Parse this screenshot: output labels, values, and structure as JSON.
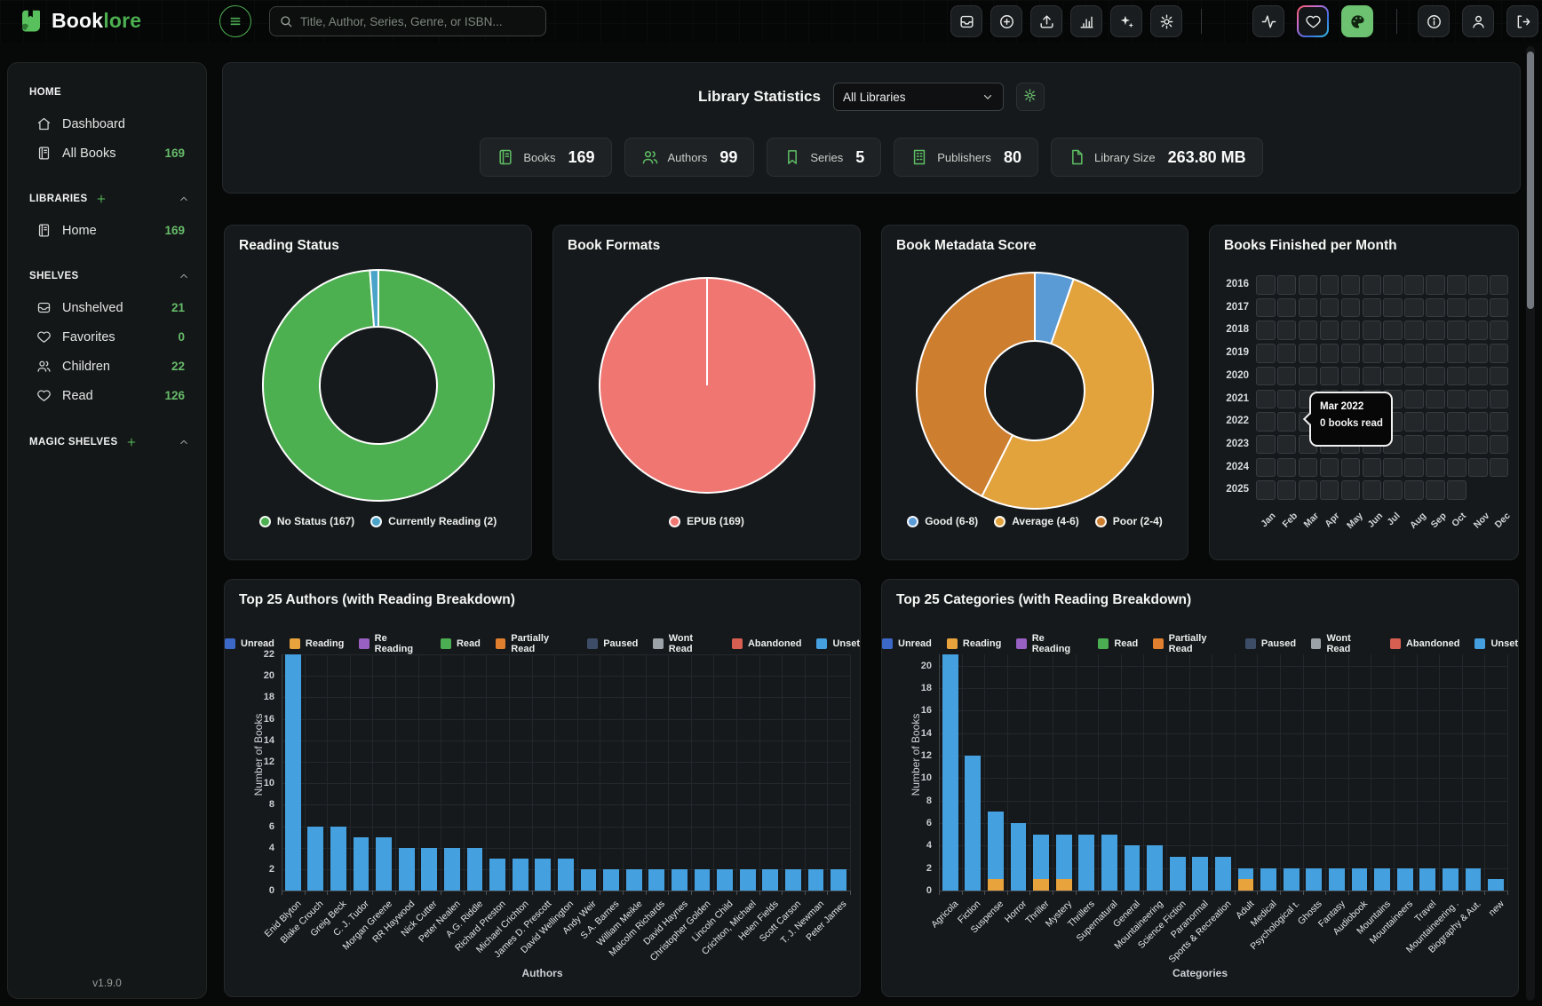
{
  "navbar": {
    "brand": {
      "name_primary": "Book",
      "name_accent": "lore"
    },
    "search_placeholder": "Title, Author, Series, Genre, or ISBN...",
    "button_groups": [
      [
        "tray",
        "plus-circle",
        "upload",
        "bar-chart",
        "sparkles",
        "gear"
      ],
      [
        "activity",
        "heart",
        "palette"
      ],
      [
        "info",
        "user",
        "logout"
      ]
    ],
    "active_button": "palette"
  },
  "sidebar": {
    "sections": [
      {
        "label": "HOME",
        "addable": false,
        "collapsible": false,
        "items": [
          {
            "icon": "home-icon",
            "label": "Dashboard",
            "count": ""
          },
          {
            "icon": "book-icon",
            "label": "All Books",
            "count": "169"
          }
        ]
      },
      {
        "label": "LIBRARIES",
        "addable": true,
        "collapsible": true,
        "items": [
          {
            "icon": "book-icon",
            "label": "Home",
            "count": "169"
          }
        ]
      },
      {
        "label": "SHELVES",
        "addable": false,
        "collapsible": true,
        "items": [
          {
            "icon": "inbox-icon",
            "label": "Unshelved",
            "count": "21"
          },
          {
            "icon": "heart-icon",
            "label": "Favorites",
            "count": "0"
          },
          {
            "icon": "users-icon",
            "label": "Children",
            "count": "22"
          },
          {
            "icon": "heart-icon",
            "label": "Read",
            "count": "126"
          }
        ]
      },
      {
        "label": "MAGIC SHELVES",
        "addable": true,
        "collapsible": true,
        "items": []
      }
    ],
    "version": "v1.9.0"
  },
  "stats": {
    "title": "Library Statistics",
    "library_filter": "All Libraries",
    "chips": [
      {
        "icon": "book-icon",
        "label": "Books",
        "value": "169"
      },
      {
        "icon": "users-icon",
        "label": "Authors",
        "value": "99"
      },
      {
        "icon": "bookmark-icon",
        "label": "Series",
        "value": "5"
      },
      {
        "icon": "building-icon",
        "label": "Publishers",
        "value": "80"
      },
      {
        "icon": "file-icon",
        "label": "Library Size",
        "value": "263.80 MB"
      }
    ]
  },
  "status_legend": [
    {
      "label": "Unread",
      "color": "#3c68c8"
    },
    {
      "label": "Reading",
      "color": "#e8a33d"
    },
    {
      "label": "Re Reading",
      "color": "#9760c2"
    },
    {
      "label": "Read",
      "color": "#4cae52"
    },
    {
      "label": "Partially Read",
      "color": "#e07f2e"
    },
    {
      "label": "Paused",
      "color": "#3d4d68"
    },
    {
      "label": "Wont Read",
      "color": "#9ba3a8"
    },
    {
      "label": "Abandoned",
      "color": "#d75f52"
    },
    {
      "label": "Unset",
      "color": "#45a0e0"
    }
  ],
  "chart_data": [
    {
      "id": "reading_status",
      "type": "pie",
      "variant": "donut",
      "title": "Reading Status",
      "labels": [
        "No Status (167)",
        "Currently Reading (2)"
      ],
      "values": [
        167,
        2
      ],
      "colors": [
        "#4caf50",
        "#4aa3c9"
      ],
      "legend_position": "bottom",
      "hole_ratio": 0.5
    },
    {
      "id": "book_formats",
      "type": "pie",
      "variant": "pie",
      "title": "Book Formats",
      "labels": [
        "EPUB (169)"
      ],
      "values": [
        169
      ],
      "colors": [
        "#f07672"
      ],
      "legend_position": "bottom",
      "hole_ratio": 0
    },
    {
      "id": "book_metadata_score",
      "type": "pie",
      "variant": "donut",
      "title": "Book Metadata Score",
      "labels": [
        "Good (6-8)",
        "Average (4-6)",
        "Poor (2-4)"
      ],
      "values": [
        9,
        88,
        72
      ],
      "values_note": "estimated from arc angles; no numeric labels shown in chart",
      "colors": [
        "#5b9bd5",
        "#e2a23c",
        "#cd7e2e"
      ],
      "legend_position": "bottom",
      "hole_ratio": 0.42
    },
    {
      "id": "books_finished_per_month",
      "type": "heatmap",
      "title": "Books Finished per Month",
      "rows": [
        "2016",
        "2017",
        "2018",
        "2019",
        "2020",
        "2021",
        "2022",
        "2023",
        "2024",
        "2025"
      ],
      "columns": [
        "Jan",
        "Feb",
        "Mar",
        "Apr",
        "May",
        "Jun",
        "Jul",
        "Aug",
        "Sep",
        "Oct",
        "Nov",
        "Dec"
      ],
      "last_row_cell_count": 10,
      "all_values_zero": true,
      "tooltip": {
        "title": "Mar 2022",
        "text": "0 books read"
      }
    },
    {
      "id": "top_authors",
      "type": "bar",
      "stacked": true,
      "title": "Top 25 Authors (with Reading Breakdown)",
      "xlabel": "Authors",
      "ylabel": "Number of Books",
      "ylim": [
        0,
        22
      ],
      "ytick_step": 2,
      "ytick_max": 22,
      "grid": true,
      "legend_position": "top",
      "categories": [
        "Enid Blyton",
        "Blake Crouch",
        "Greig Beck",
        "C. J. Tudor",
        "Morgan Greene",
        "RR Haywood",
        "Nick Cutter",
        "Peter Nealen",
        "A.G. Riddle",
        "Richard Preston",
        "Michael Crichton",
        "James D. Prescott",
        "David Wellington",
        "Andy Weir",
        "S.A. Barnes",
        "William Meikle",
        "Malcolm Richards",
        "David Haynes",
        "Christopher Golden",
        "Lincoln Child",
        "Crichton, Michael",
        "Helen Fields",
        "Scott Carson",
        "T. J. Newman",
        "Peter James"
      ],
      "series": [
        {
          "name": "Unset",
          "color": "#45a0e0",
          "values": [
            22,
            6,
            6,
            5,
            5,
            4,
            4,
            4,
            4,
            3,
            3,
            3,
            3,
            2,
            2,
            2,
            2,
            2,
            2,
            2,
            2,
            2,
            2,
            2,
            2
          ]
        }
      ]
    },
    {
      "id": "top_categories",
      "type": "bar",
      "stacked": true,
      "title": "Top 25 Categories (with Reading Breakdown)",
      "xlabel": "Categories",
      "ylabel": "Number of Books",
      "ylim": [
        0,
        21
      ],
      "ytick_step": 2,
      "ytick_max": 20,
      "grid": true,
      "legend_position": "top",
      "categories": [
        "Agricola",
        "Fiction",
        "Suspense",
        "Horror",
        "Thriller",
        "Mystery",
        "Thrillers",
        "Supernatural",
        "General",
        "Mountaineering",
        "Science Fiction",
        "Paranormal",
        "Sports & Recreation",
        "Adult",
        "Medical",
        "Psychological t.",
        "Ghosts",
        "Fantasy",
        "Audiobook",
        "Mountains",
        "Mountaineers",
        "Travel",
        "Mountaineering .",
        "Biography & Aut.",
        "new"
      ],
      "series": [
        {
          "name": "Reading",
          "color": "#e8a33d",
          "values": [
            0,
            0,
            1,
            0,
            1,
            1,
            0,
            0,
            0,
            0,
            0,
            0,
            0,
            1,
            0,
            0,
            0,
            0,
            0,
            0,
            0,
            0,
            0,
            0,
            0
          ]
        },
        {
          "name": "Unset",
          "color": "#45a0e0",
          "values": [
            21,
            12,
            6,
            6,
            4,
            4,
            5,
            5,
            4,
            4,
            3,
            3,
            3,
            1,
            2,
            2,
            2,
            2,
            2,
            2,
            2,
            2,
            2,
            2,
            1
          ]
        }
      ]
    }
  ]
}
